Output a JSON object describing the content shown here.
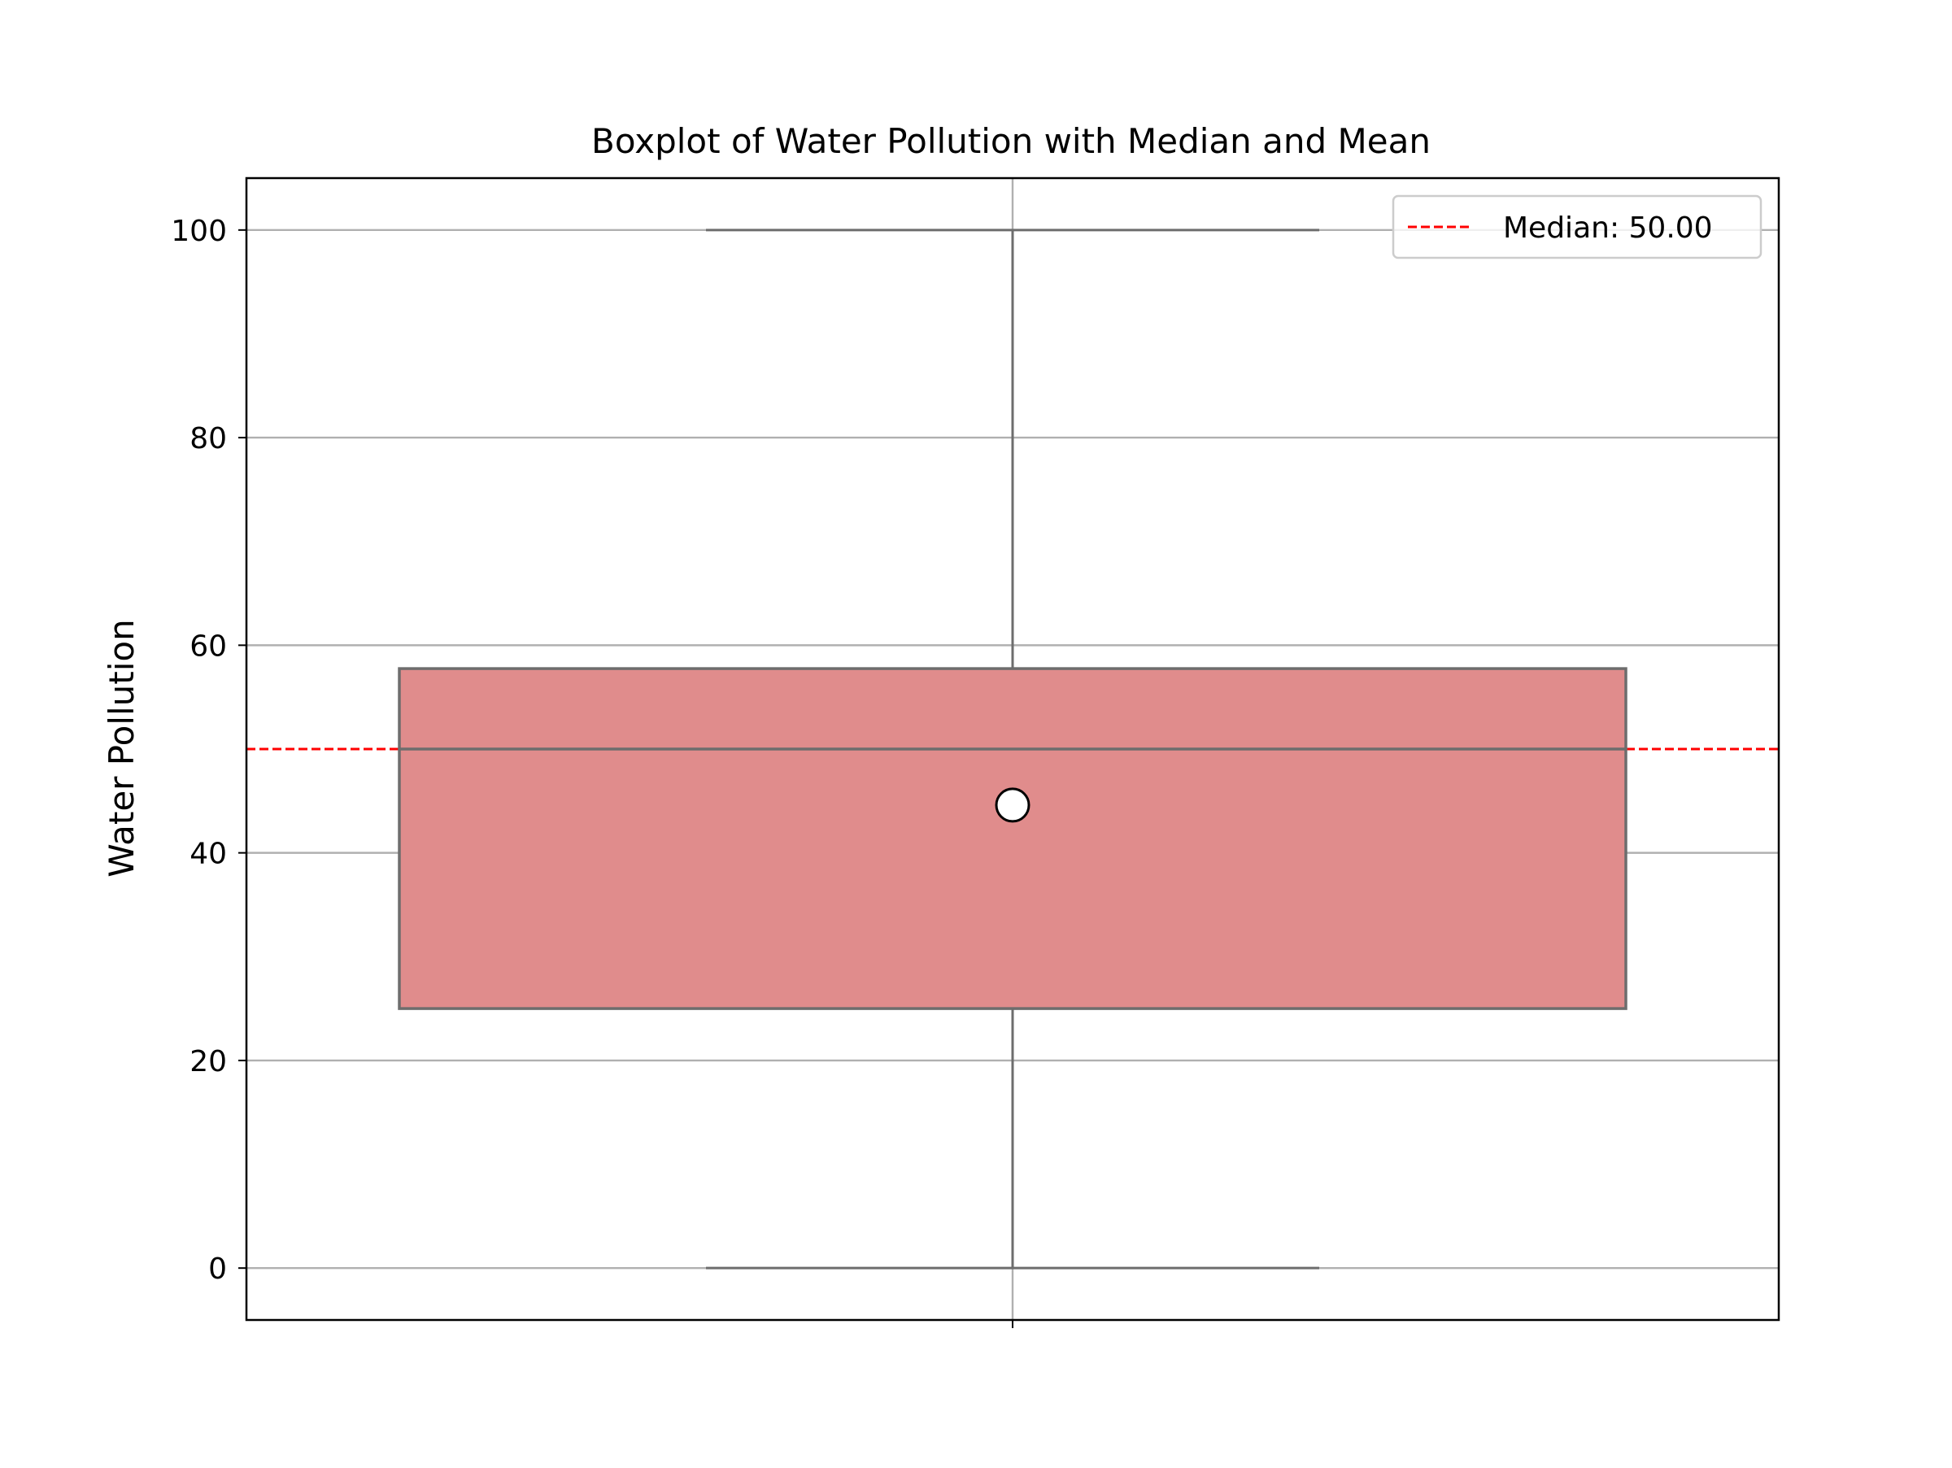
{
  "chart_data": {
    "type": "box",
    "title": "Boxplot of Water Pollution with Median and Mean",
    "xlabel": "",
    "ylabel": "Water Pollution",
    "ylim": [
      -5,
      105
    ],
    "yticks": [
      0,
      20,
      40,
      60,
      80,
      100
    ],
    "ytick_labels": [
      "0",
      "20",
      "40",
      "60",
      "80",
      "100"
    ],
    "grid": "both",
    "legend_position": "top-right",
    "box": {
      "whisker_low": 0,
      "q1": 25,
      "median": 50,
      "q3": 57.75,
      "whisker_high": 100,
      "mean": 44.6
    },
    "reference_line": {
      "value": 50.0,
      "label": "Median: 50.00",
      "style": "dashed"
    },
    "colors": {
      "box_fill": "#e08c8c",
      "box_edge": "#6d6d6d",
      "median_line": "#ff0000",
      "mean_marker_fill": "#ffffff",
      "mean_marker_edge": "#000000",
      "grid": "#b0b0b0"
    }
  }
}
